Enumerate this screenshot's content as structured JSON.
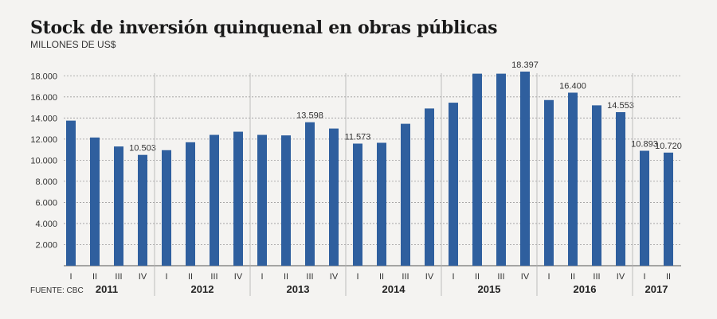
{
  "chart_data": {
    "type": "bar",
    "title": "Stock de inversión quinquenal en obras públicas",
    "subtitle": "MILLONES DE US$",
    "source": "FUENTE: CBC",
    "ylim": [
      0,
      19000
    ],
    "yticks": [
      {
        "value": 2000,
        "label": "2.000"
      },
      {
        "value": 4000,
        "label": "4.000"
      },
      {
        "value": 6000,
        "label": "6.000"
      },
      {
        "value": 8000,
        "label": "8.000"
      },
      {
        "value": 10000,
        "label": "10.000"
      },
      {
        "value": 12000,
        "label": "12.000"
      },
      {
        "value": 14000,
        "label": "14.000"
      },
      {
        "value": 16000,
        "label": "16.000"
      },
      {
        "value": 18000,
        "label": "18.000"
      }
    ],
    "bar_color": "#2f5f9e",
    "years": [
      {
        "label": "2011",
        "quarters": [
          {
            "q": "I",
            "value": 13750
          },
          {
            "q": "II",
            "value": 12150
          },
          {
            "q": "III",
            "value": 11300
          },
          {
            "q": "IV",
            "value": 10503,
            "label": "10.503"
          }
        ]
      },
      {
        "label": "2012",
        "quarters": [
          {
            "q": "I",
            "value": 10950
          },
          {
            "q": "II",
            "value": 11700
          },
          {
            "q": "III",
            "value": 12400
          },
          {
            "q": "IV",
            "value": 12700
          }
        ]
      },
      {
        "label": "2013",
        "quarters": [
          {
            "q": "I",
            "value": 12400
          },
          {
            "q": "II",
            "value": 12350
          },
          {
            "q": "III",
            "value": 13598,
            "label": "13.598"
          },
          {
            "q": "IV",
            "value": 13000
          }
        ]
      },
      {
        "label": "2014",
        "quarters": [
          {
            "q": "I",
            "value": 11573,
            "label": "11.573"
          },
          {
            "q": "II",
            "value": 11650
          },
          {
            "q": "III",
            "value": 13450
          },
          {
            "q": "IV",
            "value": 14900
          }
        ]
      },
      {
        "label": "2015",
        "quarters": [
          {
            "q": "I",
            "value": 15450
          },
          {
            "q": "II",
            "value": 18200
          },
          {
            "q": "III",
            "value": 18200
          },
          {
            "q": "IV",
            "value": 18397,
            "label": "18.397"
          }
        ]
      },
      {
        "label": "2016",
        "quarters": [
          {
            "q": "I",
            "value": 15700
          },
          {
            "q": "II",
            "value": 16400,
            "label": "16.400"
          },
          {
            "q": "III",
            "value": 15200
          },
          {
            "q": "IV",
            "value": 14553,
            "label": "14.553"
          }
        ]
      },
      {
        "label": "2017",
        "quarters": [
          {
            "q": "I",
            "value": 10893,
            "label": "10.893"
          },
          {
            "q": "II",
            "value": 10720,
            "label": "10.720"
          }
        ]
      }
    ]
  }
}
